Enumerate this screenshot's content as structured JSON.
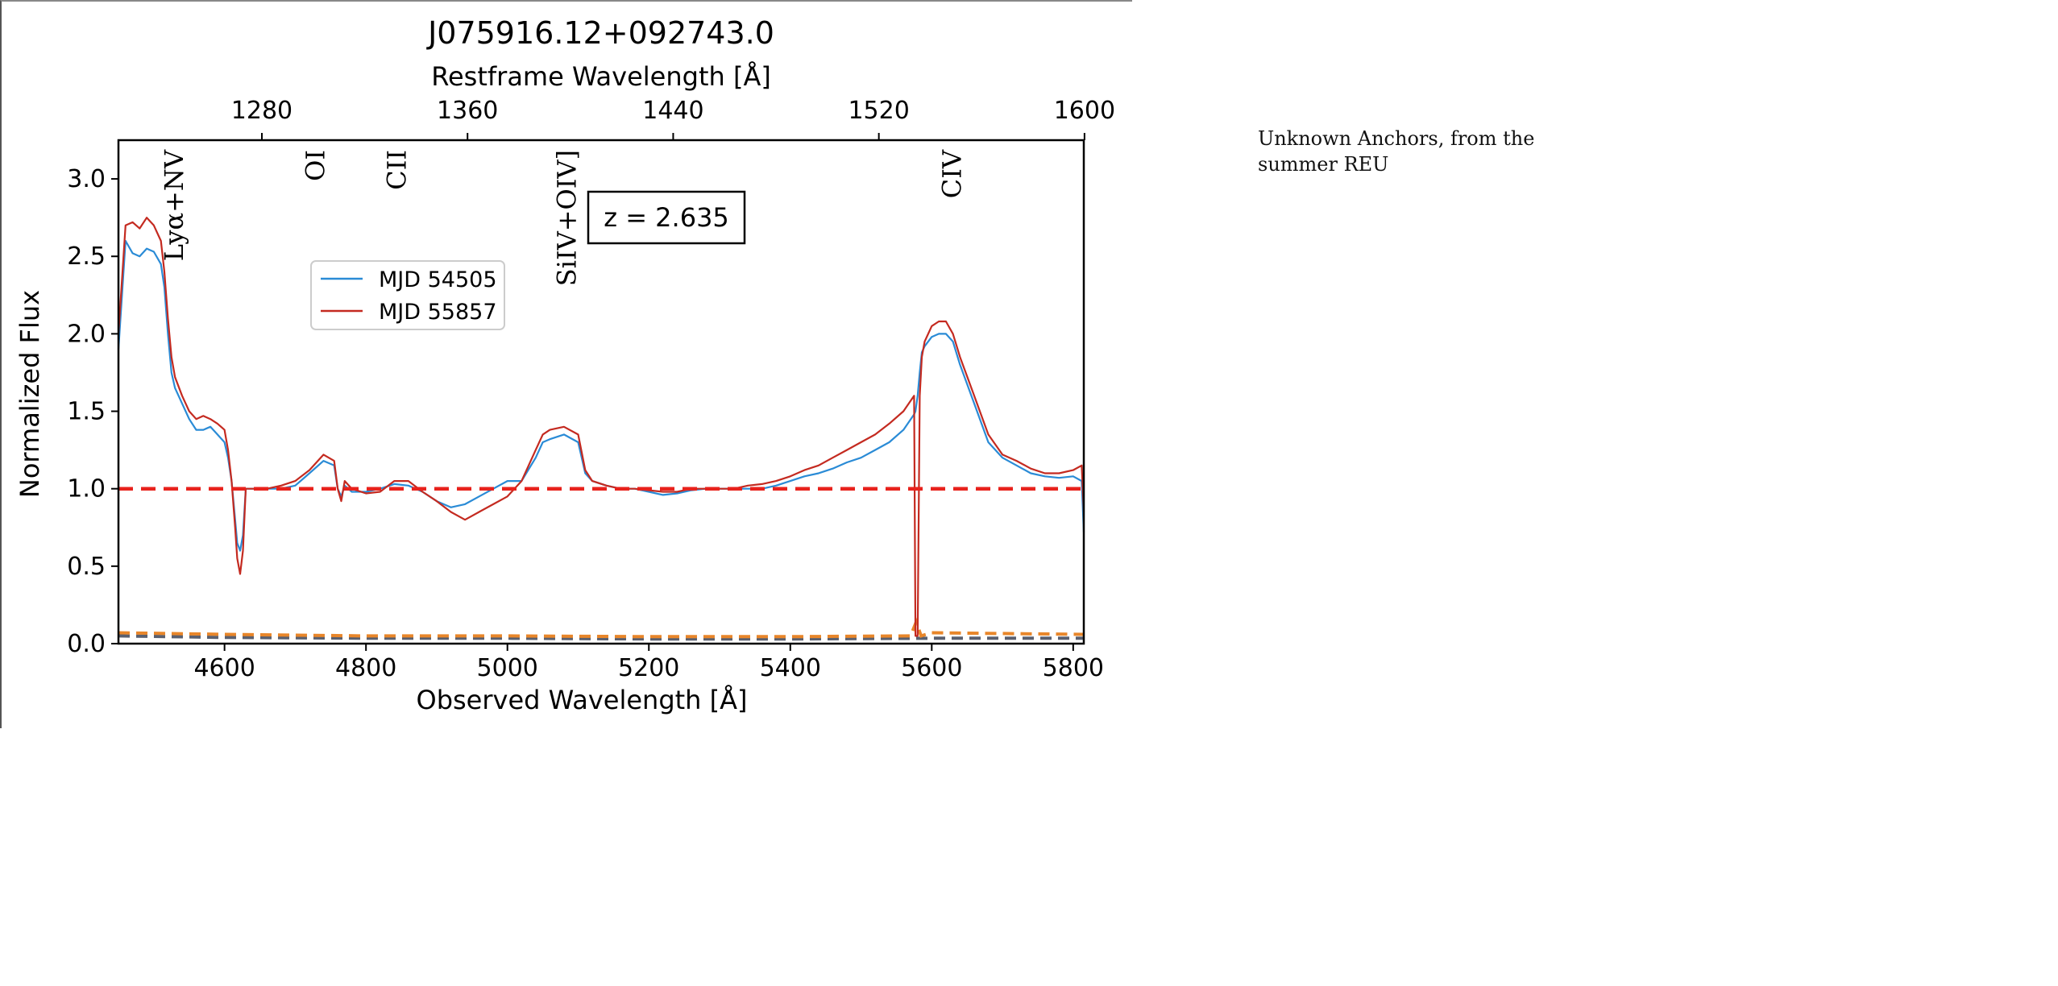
{
  "side_note": "Unknown Anchors, from the summer REU",
  "colors": {
    "series_1": "#2a8bd6",
    "series_2": "#c42a20",
    "continuum_line": "#e8221c",
    "error_1": "#e8862a",
    "error_2": "#5a6070"
  },
  "chart_data": {
    "type": "line",
    "title": "J075916.12+092743.0",
    "xlabel": "Observed Wavelength [Å]",
    "ylabel": "Normalized Flux",
    "top_xlabel": "Restframe Wavelength [Å]",
    "xlim": [
      4450,
      5815
    ],
    "ylim": [
      0.0,
      3.25
    ],
    "redshift": 2.635,
    "x_ticks": [
      4600,
      4800,
      5000,
      5200,
      5400,
      5600,
      5800
    ],
    "y_ticks": [
      0.0,
      0.5,
      1.0,
      1.5,
      2.0,
      2.5,
      3.0
    ],
    "top_x_ticks": [
      1280,
      1360,
      1440,
      1520,
      1600
    ],
    "annotation": "z = 2.635",
    "legend_placement": "upper-left",
    "grid": false,
    "line_labels": [
      {
        "text": "Lyα+NV",
        "x": 4530
      },
      {
        "text": "OI",
        "x": 4730
      },
      {
        "text": "CII",
        "x": 4845
      },
      {
        "text": "SiIV+OIV]",
        "x": 5085
      },
      {
        "text": "CIV",
        "x": 5630
      }
    ],
    "reference_line": {
      "y": 1.0,
      "style": "dashed"
    },
    "x": [
      4450,
      4460,
      4470,
      4480,
      4490,
      4500,
      4510,
      4515,
      4520,
      4525,
      4530,
      4540,
      4550,
      4560,
      4570,
      4580,
      4590,
      4600,
      4605,
      4610,
      4615,
      4618,
      4622,
      4626,
      4630,
      4640,
      4660,
      4680,
      4700,
      4720,
      4740,
      4755,
      4760,
      4765,
      4770,
      4780,
      4800,
      4820,
      4840,
      4860,
      4880,
      4900,
      4920,
      4940,
      4960,
      4980,
      5000,
      5020,
      5040,
      5050,
      5060,
      5080,
      5100,
      5110,
      5120,
      5140,
      5160,
      5180,
      5200,
      5220,
      5240,
      5260,
      5280,
      5300,
      5320,
      5340,
      5360,
      5380,
      5400,
      5420,
      5440,
      5460,
      5480,
      5500,
      5520,
      5540,
      5560,
      5575,
      5577,
      5580,
      5583,
      5586,
      5590,
      5600,
      5610,
      5620,
      5630,
      5640,
      5660,
      5680,
      5700,
      5720,
      5740,
      5760,
      5780,
      5800,
      5812,
      5815
    ],
    "series": [
      {
        "name": "MJD 54505",
        "values": [
          1.9,
          2.6,
          2.52,
          2.5,
          2.55,
          2.53,
          2.45,
          2.3,
          2.0,
          1.75,
          1.65,
          1.55,
          1.45,
          1.38,
          1.38,
          1.4,
          1.35,
          1.3,
          1.2,
          1.05,
          0.8,
          0.65,
          0.6,
          0.7,
          1.0,
          1.0,
          1.0,
          1.0,
          1.02,
          1.1,
          1.18,
          1.15,
          1.0,
          0.95,
          1.02,
          0.98,
          0.98,
          1.0,
          1.03,
          1.02,
          0.98,
          0.92,
          0.88,
          0.9,
          0.95,
          1.0,
          1.05,
          1.05,
          1.2,
          1.3,
          1.32,
          1.35,
          1.3,
          1.1,
          1.05,
          1.02,
          1.0,
          1.0,
          0.98,
          0.96,
          0.97,
          0.99,
          1.0,
          1.0,
          1.0,
          1.0,
          1.0,
          1.02,
          1.05,
          1.08,
          1.1,
          1.13,
          1.17,
          1.2,
          1.25,
          1.3,
          1.38,
          1.48,
          1.5,
          1.6,
          1.75,
          1.88,
          1.92,
          1.98,
          2.0,
          2.0,
          1.95,
          1.8,
          1.55,
          1.3,
          1.2,
          1.15,
          1.1,
          1.08,
          1.07,
          1.08,
          1.05,
          0.72
        ]
      },
      {
        "name": "MJD 55857",
        "values": [
          2.0,
          2.7,
          2.72,
          2.68,
          2.75,
          2.7,
          2.6,
          2.4,
          2.1,
          1.85,
          1.72,
          1.6,
          1.5,
          1.45,
          1.47,
          1.45,
          1.42,
          1.38,
          1.25,
          1.05,
          0.75,
          0.55,
          0.45,
          0.6,
          1.0,
          1.0,
          1.0,
          1.02,
          1.05,
          1.12,
          1.22,
          1.18,
          1.0,
          0.92,
          1.05,
          1.0,
          0.97,
          0.98,
          1.05,
          1.05,
          0.98,
          0.92,
          0.85,
          0.8,
          0.85,
          0.9,
          0.95,
          1.05,
          1.25,
          1.35,
          1.38,
          1.4,
          1.35,
          1.12,
          1.05,
          1.02,
          1.0,
          1.0,
          0.99,
          0.98,
          0.98,
          1.0,
          1.0,
          1.0,
          1.0,
          1.02,
          1.03,
          1.05,
          1.08,
          1.12,
          1.15,
          1.2,
          1.25,
          1.3,
          1.35,
          1.42,
          1.5,
          1.6,
          0.05,
          0.05,
          1.6,
          1.85,
          1.95,
          2.05,
          2.08,
          2.08,
          2.0,
          1.85,
          1.6,
          1.35,
          1.22,
          1.18,
          1.13,
          1.1,
          1.1,
          1.12,
          1.15,
          0.85
        ]
      }
    ],
    "error_series": [
      {
        "x": [
          4450,
          4600,
          4800,
          5000,
          5200,
          5400,
          5570,
          5578,
          5585,
          5600,
          5815
        ],
        "values": [
          0.07,
          0.06,
          0.05,
          0.05,
          0.045,
          0.045,
          0.05,
          0.14,
          0.05,
          0.07,
          0.06
        ]
      },
      {
        "x": [
          4450,
          4600,
          4800,
          5000,
          5200,
          5400,
          5600,
          5815
        ],
        "values": [
          0.05,
          0.04,
          0.035,
          0.035,
          0.03,
          0.03,
          0.035,
          0.035
        ]
      }
    ]
  }
}
